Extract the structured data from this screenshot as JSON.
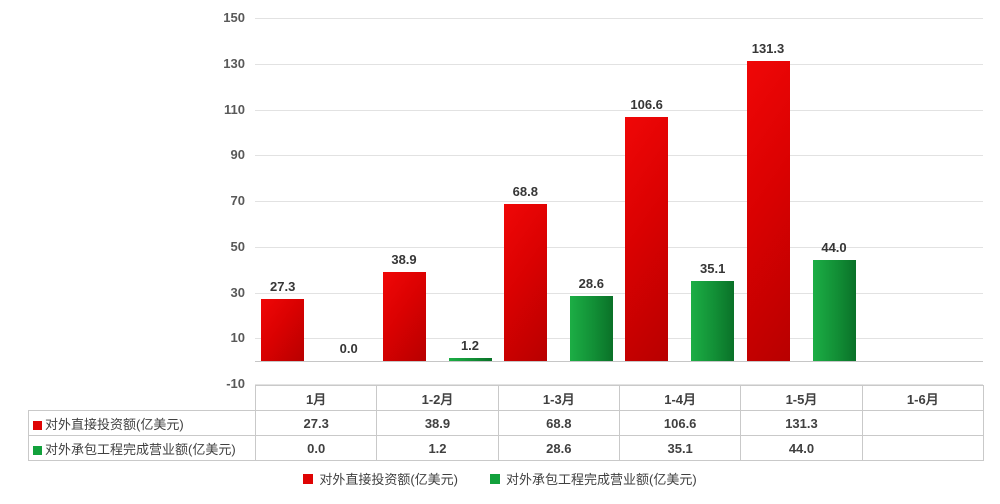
{
  "chart_data": {
    "type": "bar",
    "title": "",
    "xlabel": "",
    "ylabel": "",
    "categories": [
      "1月",
      "1-2月",
      "1-3月",
      "1-4月",
      "1-5月",
      "1-6月"
    ],
    "series": [
      {
        "name": "对外直接投资额(亿美元)",
        "color": "#df0404",
        "color_dark": "#b80000",
        "values": [
          27.3,
          38.9,
          68.8,
          106.6,
          131.3,
          null
        ]
      },
      {
        "name": "对外承包工程完成营业额(亿美元)",
        "color": "#12a13c",
        "color_dark": "#0a7128",
        "values": [
          0.0,
          1.2,
          28.6,
          35.1,
          44.0,
          null
        ]
      }
    ],
    "ylim": [
      -10,
      150
    ],
    "yticks": [
      150,
      130,
      110,
      90,
      70,
      50,
      30,
      10,
      -10
    ],
    "grid": true,
    "value_decimals": 1,
    "legend_position": "bottom",
    "data_table_shown": true
  }
}
